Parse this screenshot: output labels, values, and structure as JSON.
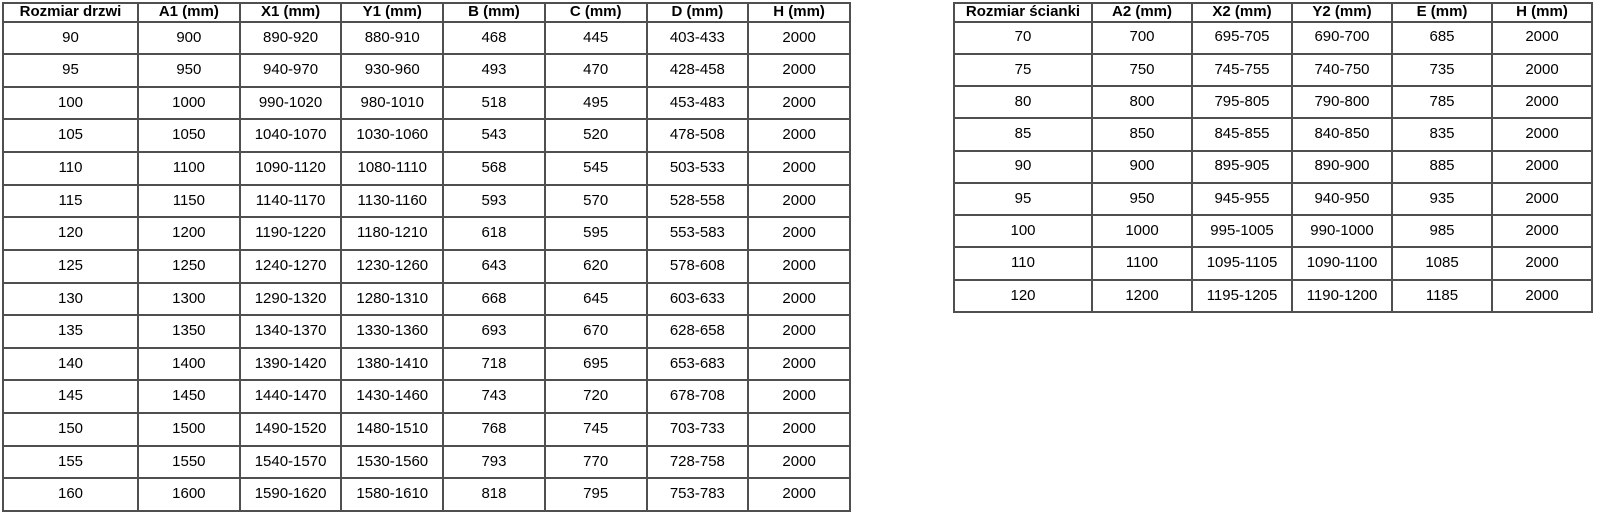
{
  "colors": {
    "background": "#ffffff",
    "border": "#4f4f4f",
    "text": "#000000"
  },
  "door_table": {
    "columns": [
      "Rozmiar drzwi",
      "A1 (mm)",
      "X1 (mm)",
      "Y1 (mm)",
      "B (mm)",
      "C (mm)",
      "D (mm)",
      "H (mm)"
    ],
    "rows": [
      [
        "90",
        "900",
        "890-920",
        "880-910",
        "468",
        "445",
        "403-433",
        "2000"
      ],
      [
        "95",
        "950",
        "940-970",
        "930-960",
        "493",
        "470",
        "428-458",
        "2000"
      ],
      [
        "100",
        "1000",
        "990-1020",
        "980-1010",
        "518",
        "495",
        "453-483",
        "2000"
      ],
      [
        "105",
        "1050",
        "1040-1070",
        "1030-1060",
        "543",
        "520",
        "478-508",
        "2000"
      ],
      [
        "110",
        "1100",
        "1090-1120",
        "1080-1110",
        "568",
        "545",
        "503-533",
        "2000"
      ],
      [
        "115",
        "1150",
        "1140-1170",
        "1130-1160",
        "593",
        "570",
        "528-558",
        "2000"
      ],
      [
        "120",
        "1200",
        "1190-1220",
        "1180-1210",
        "618",
        "595",
        "553-583",
        "2000"
      ],
      [
        "125",
        "1250",
        "1240-1270",
        "1230-1260",
        "643",
        "620",
        "578-608",
        "2000"
      ],
      [
        "130",
        "1300",
        "1290-1320",
        "1280-1310",
        "668",
        "645",
        "603-633",
        "2000"
      ],
      [
        "135",
        "1350",
        "1340-1370",
        "1330-1360",
        "693",
        "670",
        "628-658",
        "2000"
      ],
      [
        "140",
        "1400",
        "1390-1420",
        "1380-1410",
        "718",
        "695",
        "653-683",
        "2000"
      ],
      [
        "145",
        "1450",
        "1440-1470",
        "1430-1460",
        "743",
        "720",
        "678-708",
        "2000"
      ],
      [
        "150",
        "1500",
        "1490-1520",
        "1480-1510",
        "768",
        "745",
        "703-733",
        "2000"
      ],
      [
        "155",
        "1550",
        "1540-1570",
        "1530-1560",
        "793",
        "770",
        "728-758",
        "2000"
      ],
      [
        "160",
        "1600",
        "1590-1620",
        "1580-1610",
        "818",
        "795",
        "753-783",
        "2000"
      ]
    ]
  },
  "wall_table": {
    "columns": [
      "Rozmiar ścianki",
      "A2 (mm)",
      "X2 (mm)",
      "Y2 (mm)",
      "E (mm)",
      "H (mm)"
    ],
    "rows": [
      [
        "70",
        "700",
        "695-705",
        "690-700",
        "685",
        "2000"
      ],
      [
        "75",
        "750",
        "745-755",
        "740-750",
        "735",
        "2000"
      ],
      [
        "80",
        "800",
        "795-805",
        "790-800",
        "785",
        "2000"
      ],
      [
        "85",
        "850",
        "845-855",
        "840-850",
        "835",
        "2000"
      ],
      [
        "90",
        "900",
        "895-905",
        "890-900",
        "885",
        "2000"
      ],
      [
        "95",
        "950",
        "945-955",
        "940-950",
        "935",
        "2000"
      ],
      [
        "100",
        "1000",
        "995-1005",
        "990-1000",
        "985",
        "2000"
      ],
      [
        "110",
        "1100",
        "1095-1105",
        "1090-1100",
        "1085",
        "2000"
      ],
      [
        "120",
        "1200",
        "1195-1205",
        "1190-1200",
        "1185",
        "2000"
      ]
    ]
  }
}
